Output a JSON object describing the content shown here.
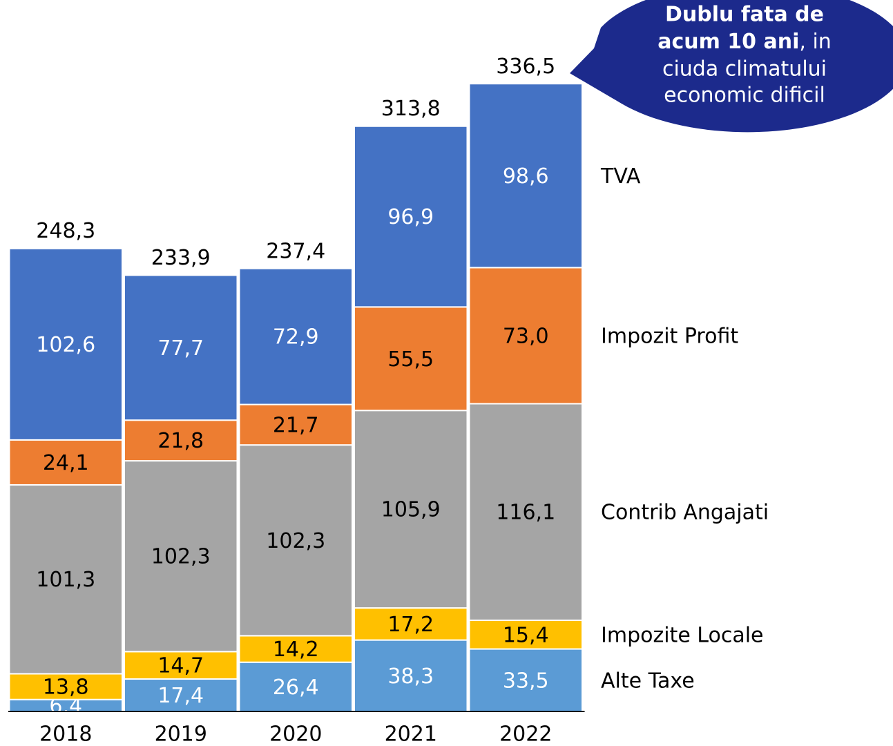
{
  "chart_data": {
    "type": "stacked_bar",
    "categories": [
      "2018",
      "2019",
      "2020",
      "2021",
      "2022"
    ],
    "series": [
      {
        "name": "Alte Taxe",
        "color": "#5b9bd5",
        "values": [
          6.4,
          17.4,
          26.4,
          38.3,
          33.5
        ],
        "value_labels": [
          "6,4",
          "17,4",
          "26,4",
          "38,3",
          "33,5"
        ]
      },
      {
        "name": "Impozite Locale",
        "color": "#ffc000",
        "values": [
          13.8,
          14.7,
          14.2,
          17.2,
          15.4
        ],
        "value_labels": [
          "13,8",
          "14,7",
          "14,2",
          "17,2",
          "15,4"
        ]
      },
      {
        "name": "Contrib Angajati",
        "color": "#a5a5a5",
        "values": [
          101.3,
          102.3,
          102.3,
          105.9,
          116.1
        ],
        "value_labels": [
          "101,3",
          "102,3",
          "102,3",
          "105,9",
          "116,1"
        ]
      },
      {
        "name": "Impozit Profit",
        "color": "#ed7d31",
        "values": [
          24.1,
          21.8,
          21.7,
          55.5,
          73.0
        ],
        "value_labels": [
          "24,1",
          "21,8",
          "21,7",
          "55,5",
          "73,0"
        ]
      },
      {
        "name": "TVA",
        "color": "#4472c4",
        "values": [
          102.6,
          77.7,
          72.9,
          96.9,
          98.6
        ],
        "value_labels": [
          "102,6",
          "77,7",
          "72,9",
          "96,9",
          "98,6"
        ]
      }
    ],
    "totals": [
      248.3,
      233.9,
      237.4,
      313.8,
      336.5
    ],
    "total_labels": [
      "248,3",
      "233,9",
      "237,4",
      "313,8",
      "336,5"
    ],
    "annotation": {
      "bold": [
        "Dublu fata de",
        "acum 10 ani"
      ],
      "text": [
        ", in",
        "ciuda climatului",
        "economic dificil"
      ]
    }
  }
}
